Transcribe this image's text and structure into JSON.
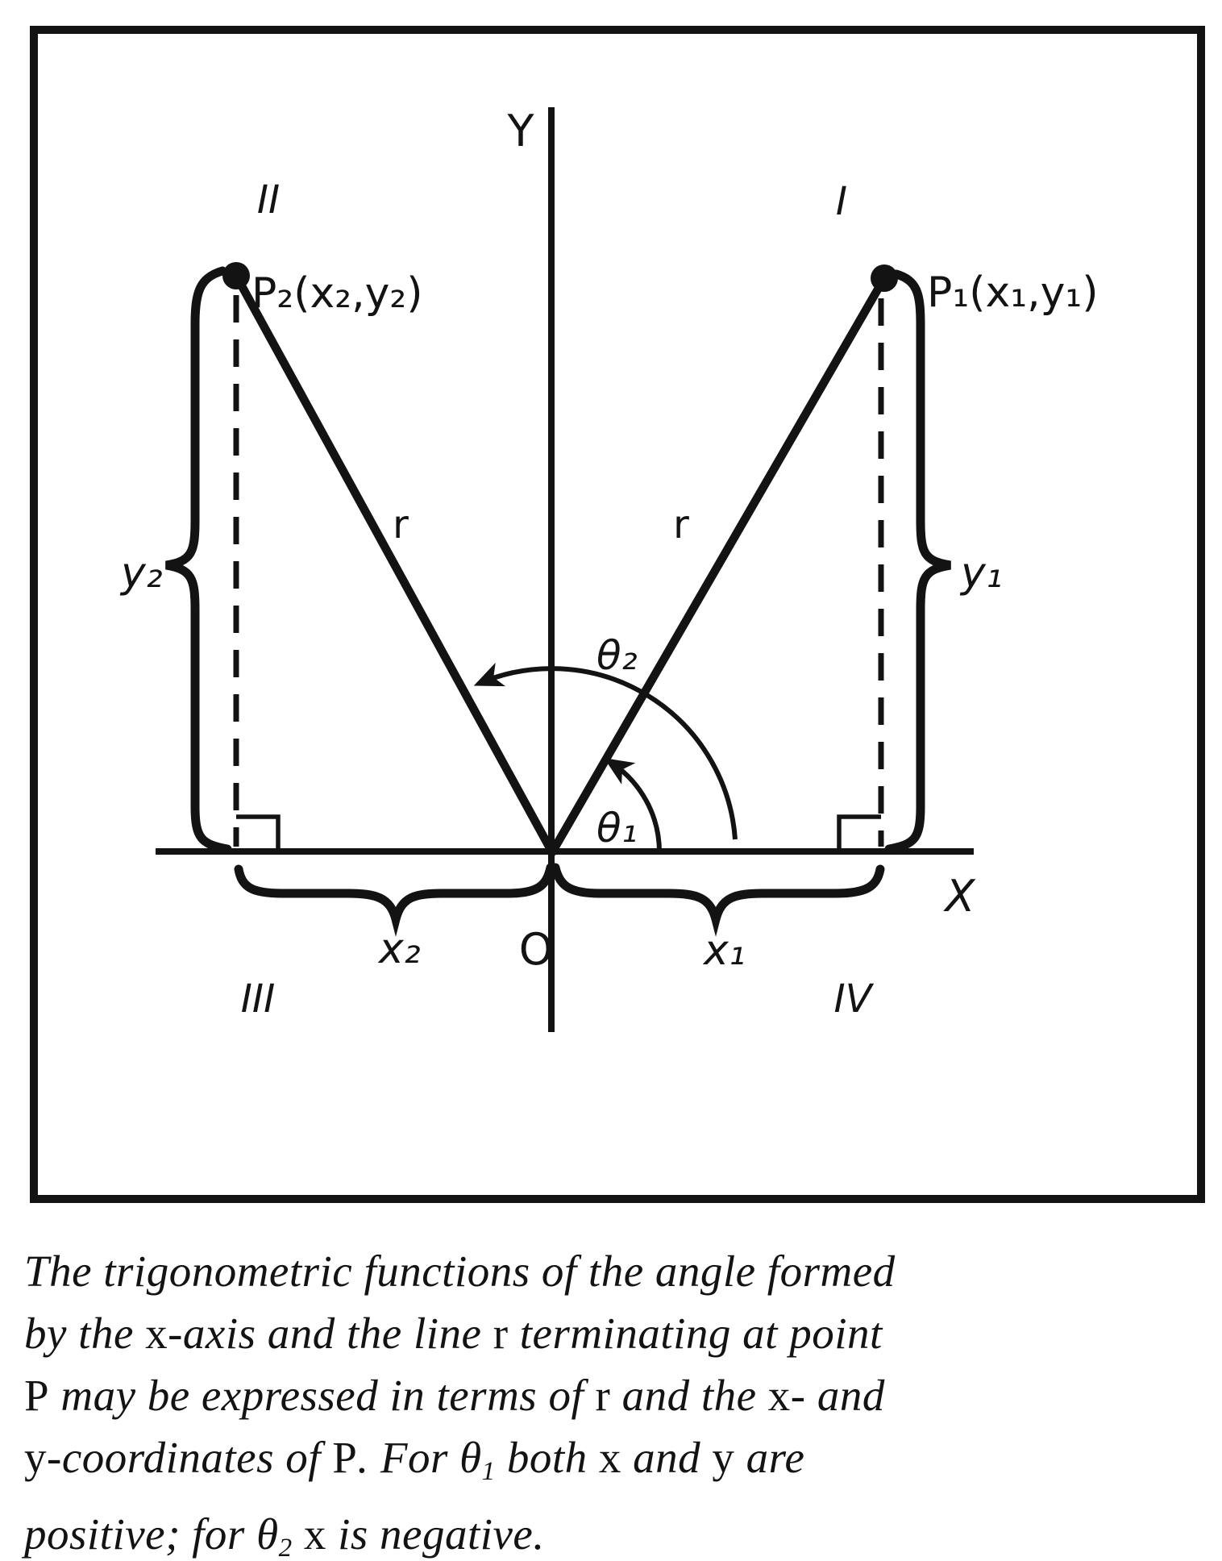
{
  "figure": {
    "ink_color": "#131313",
    "background": "#ffffff",
    "axis_labels": {
      "y": "Y",
      "x": "X",
      "origin": "O"
    },
    "quadrants": {
      "q1": "I",
      "q2": "II",
      "q3": "III",
      "q4": "IV"
    },
    "points": {
      "p2_label": "P₂(x₂,y₂)",
      "p1_label": "P₁(x₁,y₁)"
    },
    "radius_labels": {
      "left": "r",
      "right": "r"
    },
    "angle_labels": {
      "theta2": "θ₂",
      "theta1": "θ₁"
    },
    "measure_labels": {
      "y2": "y₂",
      "y1": "y₁",
      "x2": "x₂",
      "x1": "x₁"
    }
  },
  "caption": {
    "lines": [
      [
        {
          "t": "The trigonometric functions of the angle formed",
          "s": "i"
        }
      ],
      [
        {
          "t": "by the ",
          "s": "i"
        },
        {
          "t": "x",
          "s": "r"
        },
        {
          "t": "-axis and the line ",
          "s": "i"
        },
        {
          "t": "r",
          "s": "r"
        },
        {
          "t": " terminating at point",
          "s": "i"
        }
      ],
      [
        {
          "t": "P",
          "s": "r"
        },
        {
          "t": " may be expressed in terms of ",
          "s": "i"
        },
        {
          "t": "r",
          "s": "r"
        },
        {
          "t": " and the ",
          "s": "i"
        },
        {
          "t": "x",
          "s": "r"
        },
        {
          "t": "- and",
          "s": "i"
        }
      ],
      [
        {
          "t": "y",
          "s": "r"
        },
        {
          "t": "-coordinates of ",
          "s": "i"
        },
        {
          "t": "P",
          "s": "r"
        },
        {
          "t": ". For ",
          "s": "i"
        },
        {
          "t": "θ",
          "s": "th"
        },
        {
          "t": "1",
          "s": "sub"
        },
        {
          "t": " both ",
          "s": "i"
        },
        {
          "t": "x",
          "s": "r"
        },
        {
          "t": " and ",
          "s": "i"
        },
        {
          "t": "y",
          "s": "r"
        },
        {
          "t": " are",
          "s": "i"
        }
      ],
      [
        {
          "t": "positive; for ",
          "s": "i"
        },
        {
          "t": "θ",
          "s": "th"
        },
        {
          "t": "2",
          "s": "sub"
        },
        {
          "t": " ",
          "s": "i"
        },
        {
          "t": "x",
          "s": "r"
        },
        {
          "t": " is negative.",
          "s": "i"
        }
      ]
    ]
  }
}
